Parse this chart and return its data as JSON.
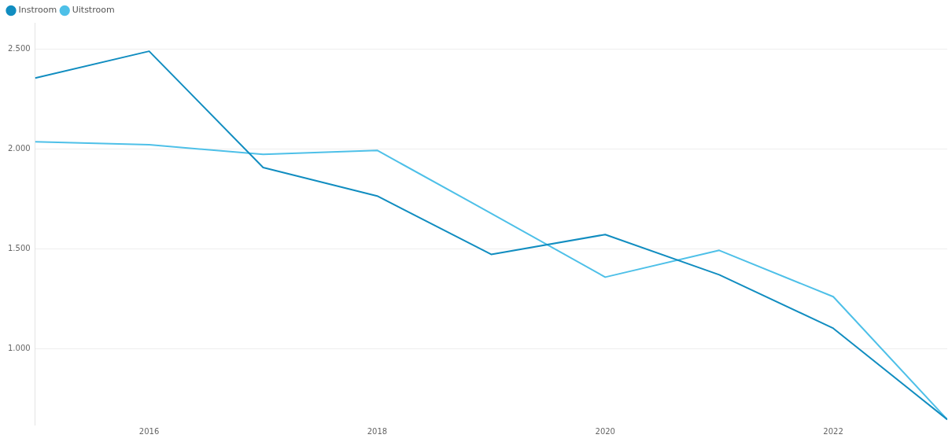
{
  "chart_data": {
    "type": "line",
    "x": [
      2015,
      2016,
      2017,
      2018,
      2019,
      2020,
      2021,
      2022,
      2023
    ],
    "series": [
      {
        "name": "Instroom",
        "color": "#118dc0",
        "values": [
          2354,
          2488,
          1906,
          1764,
          1472,
          1571,
          1370,
          1102,
          646
        ]
      },
      {
        "name": "Uitstroom",
        "color": "#4ec0e8",
        "values": [
          2035,
          2020,
          1972,
          1992,
          1677,
          1358,
          1492,
          1260,
          646
        ]
      }
    ],
    "xlim": [
      2015,
      2023
    ],
    "xticks": [
      2016,
      2018,
      2020,
      2022
    ],
    "ylim": [
      620,
      2630
    ],
    "yticks": [
      {
        "value": 1000,
        "label": "1.000"
      },
      {
        "value": 1500,
        "label": "1.500"
      },
      {
        "value": 2000,
        "label": "2.000"
      },
      {
        "value": 2500,
        "label": "2.500"
      }
    ],
    "grid": "y",
    "legend": "top left",
    "marker": "none",
    "line_style": "solid"
  }
}
